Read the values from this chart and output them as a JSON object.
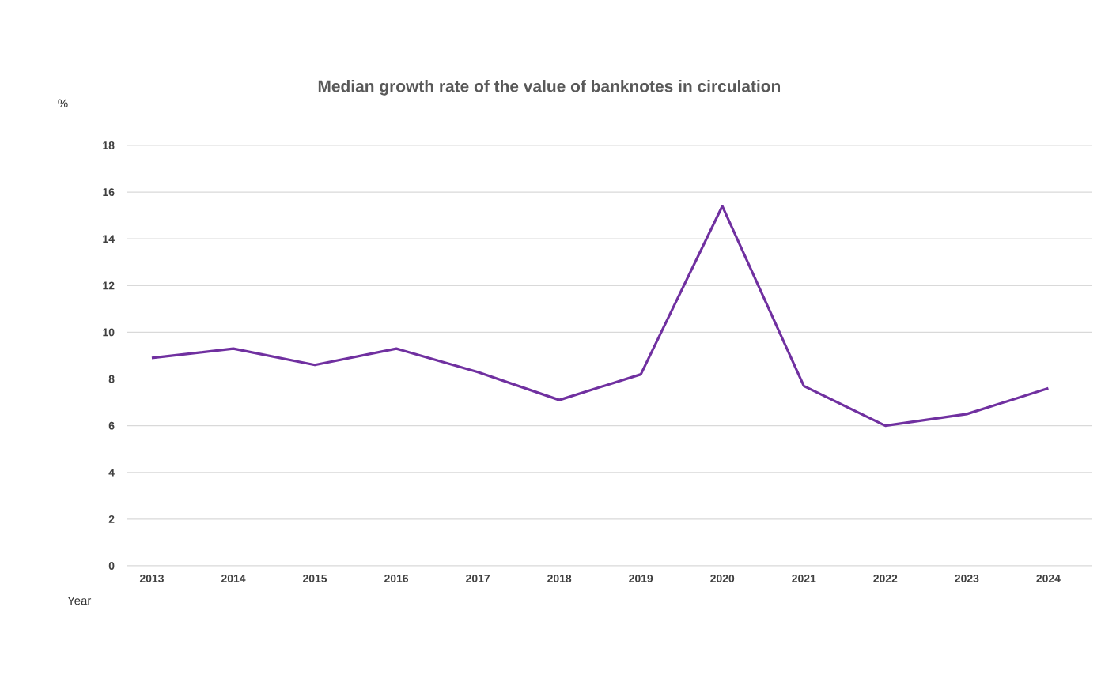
{
  "chart_data": {
    "type": "line",
    "title": "Median growth rate of the value of banknotes in circulation",
    "xlabel": "Year",
    "ylabel": "%",
    "categories": [
      "2013",
      "2014",
      "2015",
      "2016",
      "2017",
      "2018",
      "2019",
      "2020",
      "2021",
      "2022",
      "2023",
      "2024"
    ],
    "series": [
      {
        "color": "#7030a0",
        "values": [
          8.9,
          9.3,
          8.6,
          9.3,
          8.3,
          7.1,
          8.2,
          15.4,
          7.7,
          6.0,
          6.5,
          7.6
        ]
      }
    ],
    "ylim": [
      0,
      18
    ],
    "yticks": [
      0,
      2,
      4,
      6,
      8,
      10,
      12,
      14,
      16,
      18
    ],
    "grid": "y",
    "marker": "none",
    "line_style": "solid"
  }
}
